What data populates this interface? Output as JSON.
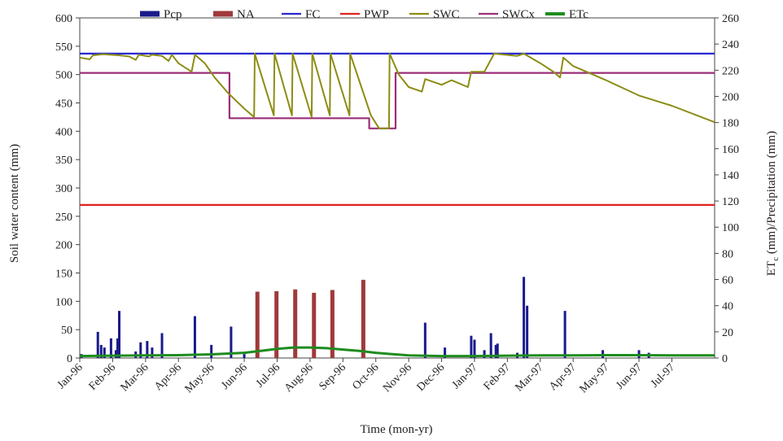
{
  "chart_data": {
    "type": "line",
    "xlabel": "Time (mon-yr)",
    "ylabel_left": "Soil water content (mm)",
    "ylabel_right_parts": [
      "ET",
      "c",
      " (mm)/Precipitation (mm)"
    ],
    "x_tick_labels": [
      "Jan-96",
      "Feb-96",
      "Mar-96",
      "Apr-96",
      "May-96",
      "Jun-96",
      "Jul-96",
      "Aug-96",
      "Sep-96",
      "Oct-96",
      "Nov-96",
      "Dec-96",
      "Jan-97",
      "Feb-97",
      "Mar-97",
      "Apr-97",
      "May-97",
      "Jun-97",
      "Jul-97"
    ],
    "x_range_months": [
      0,
      19.3
    ],
    "y_left_range": [
      0,
      600
    ],
    "y_left_ticks": [
      0,
      50,
      100,
      150,
      200,
      250,
      300,
      350,
      400,
      450,
      500,
      550,
      600
    ],
    "y_right_range": [
      0,
      260
    ],
    "y_right_ticks": [
      0,
      20,
      40,
      60,
      80,
      100,
      120,
      140,
      160,
      180,
      200,
      220,
      240,
      260
    ],
    "legend_position": "top",
    "legend": [
      "Pcp",
      "NA",
      "FC",
      "PWP",
      "SWC",
      "SWCx",
      "ETc"
    ],
    "colors": {
      "Pcp": "#1a1a8c",
      "NA": "#a0393a",
      "FC": "#2828d0",
      "PWP": "#e02020",
      "SWC": "#8c8c14",
      "SWCx": "#9a2f78",
      "ETc": "#1e8c1e"
    },
    "FC": 537,
    "PWP": 270,
    "SWCx": [
      {
        "x": 0,
        "y": 503
      },
      {
        "x": 4.55,
        "y": 503
      },
      {
        "x": 4.55,
        "y": 423
      },
      {
        "x": 8.8,
        "y": 423
      },
      {
        "x": 8.8,
        "y": 405
      },
      {
        "x": 9.6,
        "y": 405
      },
      {
        "x": 9.6,
        "y": 503
      },
      {
        "x": 19.3,
        "y": 503
      }
    ],
    "SWC": [
      {
        "x": 0,
        "y": 530
      },
      {
        "x": 0.3,
        "y": 527
      },
      {
        "x": 0.4,
        "y": 534
      },
      {
        "x": 0.7,
        "y": 536
      },
      {
        "x": 1.2,
        "y": 534
      },
      {
        "x": 1.5,
        "y": 532
      },
      {
        "x": 1.7,
        "y": 526
      },
      {
        "x": 1.8,
        "y": 535
      },
      {
        "x": 2.1,
        "y": 532
      },
      {
        "x": 2.2,
        "y": 535
      },
      {
        "x": 2.5,
        "y": 533
      },
      {
        "x": 2.7,
        "y": 524
      },
      {
        "x": 2.8,
        "y": 535
      },
      {
        "x": 3.0,
        "y": 520
      },
      {
        "x": 3.4,
        "y": 505
      },
      {
        "x": 3.5,
        "y": 535
      },
      {
        "x": 3.8,
        "y": 520
      },
      {
        "x": 4.1,
        "y": 495
      },
      {
        "x": 4.5,
        "y": 468
      },
      {
        "x": 5.0,
        "y": 440
      },
      {
        "x": 5.3,
        "y": 425
      },
      {
        "x": 5.32,
        "y": 537
      },
      {
        "x": 5.9,
        "y": 428
      },
      {
        "x": 5.92,
        "y": 537
      },
      {
        "x": 6.45,
        "y": 428
      },
      {
        "x": 6.47,
        "y": 537
      },
      {
        "x": 7.05,
        "y": 425
      },
      {
        "x": 7.07,
        "y": 537
      },
      {
        "x": 7.6,
        "y": 428
      },
      {
        "x": 7.62,
        "y": 537
      },
      {
        "x": 8.2,
        "y": 428
      },
      {
        "x": 8.22,
        "y": 537
      },
      {
        "x": 8.85,
        "y": 428
      },
      {
        "x": 9.1,
        "y": 405
      },
      {
        "x": 9.4,
        "y": 405
      },
      {
        "x": 9.42,
        "y": 537
      },
      {
        "x": 9.7,
        "y": 500
      },
      {
        "x": 10.0,
        "y": 478
      },
      {
        "x": 10.4,
        "y": 470
      },
      {
        "x": 10.5,
        "y": 492
      },
      {
        "x": 11.0,
        "y": 482
      },
      {
        "x": 11.3,
        "y": 490
      },
      {
        "x": 11.8,
        "y": 478
      },
      {
        "x": 11.9,
        "y": 505
      },
      {
        "x": 12.3,
        "y": 505
      },
      {
        "x": 12.6,
        "y": 537
      },
      {
        "x": 13.3,
        "y": 533
      },
      {
        "x": 13.5,
        "y": 537
      },
      {
        "x": 14.0,
        "y": 520
      },
      {
        "x": 14.4,
        "y": 505
      },
      {
        "x": 14.6,
        "y": 495
      },
      {
        "x": 14.7,
        "y": 530
      },
      {
        "x": 15.0,
        "y": 515
      },
      {
        "x": 16.0,
        "y": 490
      },
      {
        "x": 17.0,
        "y": 463
      },
      {
        "x": 18.0,
        "y": 445
      },
      {
        "x": 19.3,
        "y": 416
      }
    ],
    "Pcp": [
      {
        "x": 0.05,
        "y": 3
      },
      {
        "x": 0.55,
        "y": 20
      },
      {
        "x": 0.65,
        "y": 10
      },
      {
        "x": 0.75,
        "y": 8
      },
      {
        "x": 0.95,
        "y": 15
      },
      {
        "x": 1.1,
        "y": 6
      },
      {
        "x": 1.15,
        "y": 15
      },
      {
        "x": 1.2,
        "y": 36
      },
      {
        "x": 1.7,
        "y": 5
      },
      {
        "x": 1.85,
        "y": 12
      },
      {
        "x": 2.05,
        "y": 13
      },
      {
        "x": 2.2,
        "y": 8
      },
      {
        "x": 2.5,
        "y": 19
      },
      {
        "x": 3.5,
        "y": 32
      },
      {
        "x": 4.0,
        "y": 10
      },
      {
        "x": 4.6,
        "y": 24
      },
      {
        "x": 5.0,
        "y": 3
      },
      {
        "x": 10.5,
        "y": 27
      },
      {
        "x": 11.1,
        "y": 8
      },
      {
        "x": 11.9,
        "y": 17
      },
      {
        "x": 12.0,
        "y": 14
      },
      {
        "x": 12.3,
        "y": 6
      },
      {
        "x": 12.5,
        "y": 19
      },
      {
        "x": 12.65,
        "y": 10
      },
      {
        "x": 12.7,
        "y": 11
      },
      {
        "x": 13.3,
        "y": 4
      },
      {
        "x": 13.5,
        "y": 62
      },
      {
        "x": 13.6,
        "y": 40
      },
      {
        "x": 14.75,
        "y": 36
      },
      {
        "x": 15.9,
        "y": 6
      },
      {
        "x": 17.0,
        "y": 6
      },
      {
        "x": 17.3,
        "y": 4
      }
    ],
    "NA": [
      {
        "x": 5.4,
        "y": 117
      },
      {
        "x": 5.98,
        "y": 118
      },
      {
        "x": 6.55,
        "y": 121
      },
      {
        "x": 7.12,
        "y": 115
      },
      {
        "x": 7.68,
        "y": 120
      },
      {
        "x": 8.62,
        "y": 138
      }
    ],
    "ETc": [
      {
        "x": 0,
        "y": 1.5
      },
      {
        "x": 1,
        "y": 1.8
      },
      {
        "x": 2,
        "y": 2
      },
      {
        "x": 3,
        "y": 2.2
      },
      {
        "x": 4,
        "y": 2.8
      },
      {
        "x": 5,
        "y": 4
      },
      {
        "x": 5.5,
        "y": 5.5
      },
      {
        "x": 6,
        "y": 7
      },
      {
        "x": 6.5,
        "y": 8
      },
      {
        "x": 7,
        "y": 8
      },
      {
        "x": 7.5,
        "y": 7.5
      },
      {
        "x": 8,
        "y": 6.5
      },
      {
        "x": 8.5,
        "y": 5.5
      },
      {
        "x": 9,
        "y": 4
      },
      {
        "x": 9.5,
        "y": 3
      },
      {
        "x": 10,
        "y": 2
      },
      {
        "x": 11,
        "y": 1.5
      },
      {
        "x": 12,
        "y": 1.5
      },
      {
        "x": 13,
        "y": 1.8
      },
      {
        "x": 14,
        "y": 2
      },
      {
        "x": 15,
        "y": 2
      },
      {
        "x": 16,
        "y": 2.2
      },
      {
        "x": 17,
        "y": 2.2
      },
      {
        "x": 18,
        "y": 2
      },
      {
        "x": 19.3,
        "y": 2
      }
    ]
  }
}
